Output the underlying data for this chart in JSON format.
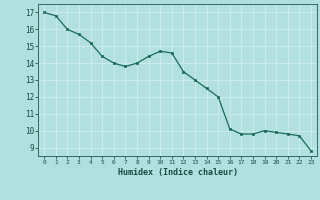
{
  "x": [
    0,
    1,
    2,
    3,
    4,
    5,
    6,
    7,
    8,
    9,
    10,
    11,
    12,
    13,
    14,
    15,
    16,
    17,
    18,
    19,
    20,
    21,
    22,
    23
  ],
  "y": [
    17.0,
    16.8,
    16.0,
    15.7,
    15.2,
    14.4,
    14.0,
    13.8,
    14.0,
    14.4,
    14.7,
    14.6,
    13.5,
    13.0,
    12.5,
    12.0,
    10.1,
    9.8,
    9.8,
    10.0,
    9.9,
    9.8,
    9.7,
    8.8
  ],
  "xlabel": "Humidex (Indice chaleur)",
  "xlim": [
    -0.5,
    23.5
  ],
  "ylim": [
    8.5,
    17.5
  ],
  "yticks": [
    9,
    10,
    11,
    12,
    13,
    14,
    15,
    16,
    17
  ],
  "xticks": [
    0,
    1,
    2,
    3,
    4,
    5,
    6,
    7,
    8,
    9,
    10,
    11,
    12,
    13,
    14,
    15,
    16,
    17,
    18,
    19,
    20,
    21,
    22,
    23
  ],
  "line_color": "#1a6b5a",
  "marker_color": "#1a6b5a",
  "bg_color": "#b2e0e0",
  "grid_color": "#d0eded",
  "axes_edge_color": "#2e6b5e",
  "tick_color": "#1a4a40",
  "label_color": "#1a4a40"
}
